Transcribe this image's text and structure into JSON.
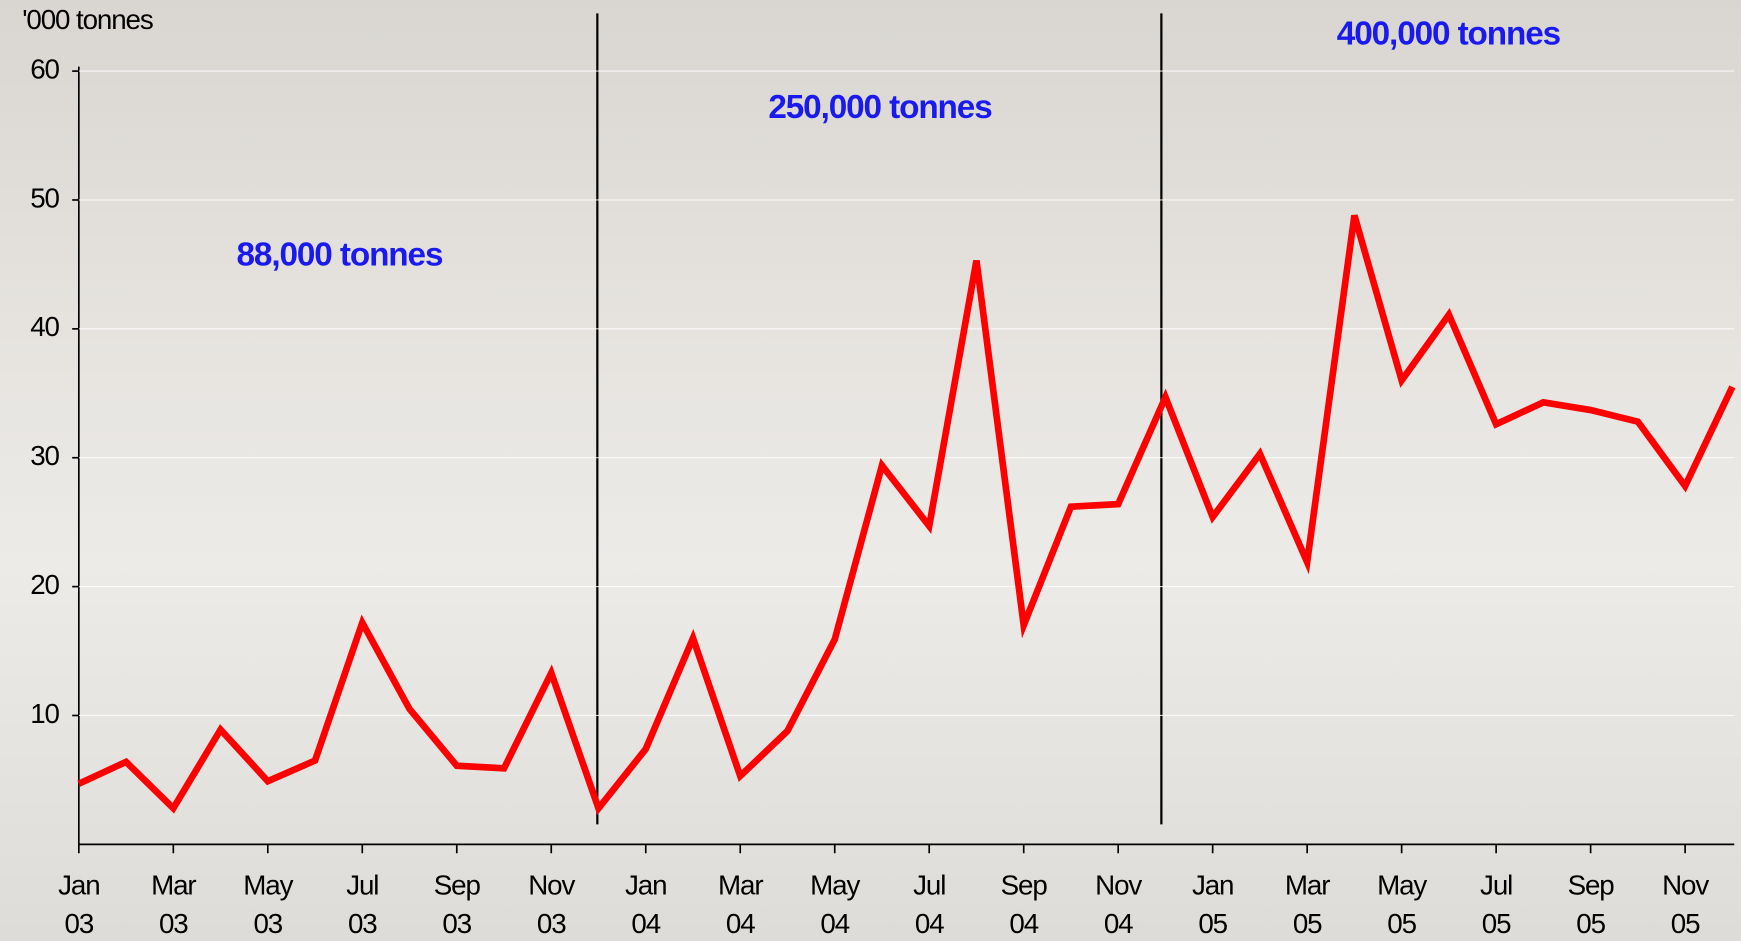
{
  "chart_data": {
    "type": "line",
    "y_axis_label": "'000 tonnes",
    "annotations": [
      "88,000 tonnes",
      "250,000 tonnes",
      "400,000 tonnes"
    ],
    "categories": [
      "Jan\n03",
      null,
      "Mar\n03",
      null,
      "May\n03",
      null,
      "Jul\n03",
      null,
      "Sep\n03",
      null,
      "Nov\n03",
      null,
      "Jan\n04",
      null,
      "Mar\n04",
      null,
      "May\n04",
      null,
      "Jul\n04",
      null,
      "Sep\n04",
      null,
      "Nov\n04",
      null,
      "Jan\n05",
      null,
      "Mar\n05",
      null,
      "May\n05",
      null,
      "Jul\n05",
      null,
      "Sep\n05",
      null,
      "Nov\n05",
      null
    ],
    "series": [
      {
        "color": "#ff0000",
        "values": [
          4.7,
          6.4,
          2.8,
          8.9,
          4.9,
          6.5,
          17.2,
          10.5,
          6.1,
          5.9,
          13.3,
          2.8,
          7.4,
          16.0,
          5.3,
          8.8,
          15.9,
          29.4,
          24.7,
          45.3,
          17.0,
          26.2,
          26.4,
          34.7,
          25.4,
          30.3,
          21.9,
          48.8,
          36.0,
          41.1,
          32.6,
          34.3,
          33.7,
          32.8,
          27.8,
          35.5
        ]
      }
    ],
    "ylim": [
      0,
      60
    ],
    "yticks": [
      10,
      20,
      30,
      40,
      50,
      60
    ],
    "grid": true
  }
}
